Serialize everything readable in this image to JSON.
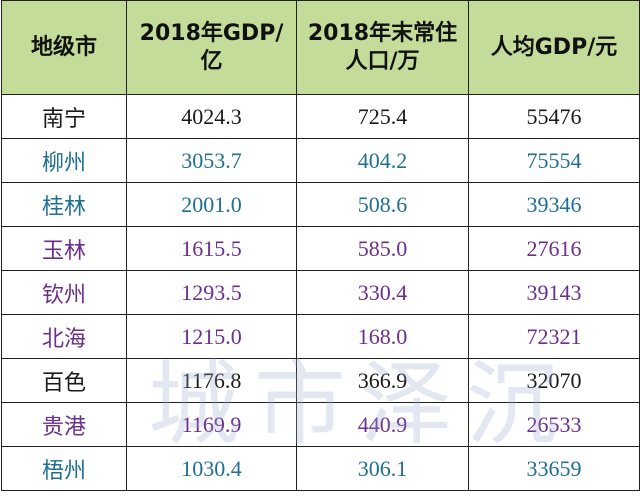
{
  "table": {
    "headers": [
      {
        "lines": [
          "地级市"
        ]
      },
      {
        "lines": [
          "2018年GDP/",
          "亿"
        ]
      },
      {
        "lines": [
          "2018年末常住",
          "人口/万"
        ]
      },
      {
        "lines": [
          "人均GDP/元"
        ]
      }
    ],
    "rows": [
      {
        "city": "南宁",
        "gdp": "4024.3",
        "population": "725.4",
        "gdp_per_capita": "55476",
        "color": "#1a1a1a"
      },
      {
        "city": "柳州",
        "gdp": "3053.7",
        "population": "404.2",
        "gdp_per_capita": "75554",
        "color": "#1f6f93"
      },
      {
        "city": "桂林",
        "gdp": "2001.0",
        "population": "508.6",
        "gdp_per_capita": "39346",
        "color": "#1f6f93"
      },
      {
        "city": "玉林",
        "gdp": "1615.5",
        "population": "585.0",
        "gdp_per_capita": "27616",
        "color": "#6b2f8e"
      },
      {
        "city": "钦州",
        "gdp": "1293.5",
        "population": "330.4",
        "gdp_per_capita": "39143",
        "color": "#6b2f8e"
      },
      {
        "city": "北海",
        "gdp": "1215.0",
        "population": "168.0",
        "gdp_per_capita": "72321",
        "color": "#6b2f8e"
      },
      {
        "city": "百色",
        "gdp": "1176.8",
        "population": "366.9",
        "gdp_per_capita": "32070",
        "color": "#1a1a1a"
      },
      {
        "city": "贵港",
        "gdp": "1169.9",
        "population": "440.9",
        "gdp_per_capita": "26533",
        "color": "#6b2f8e"
      },
      {
        "city": "梧州",
        "gdp": "1030.4",
        "population": "306.1",
        "gdp_per_capita": "33659",
        "color": "#1f6f93"
      }
    ]
  },
  "watermark": "城市泽沉",
  "colors": {
    "header_bg": "#c3dc9a",
    "border": "#222222"
  }
}
